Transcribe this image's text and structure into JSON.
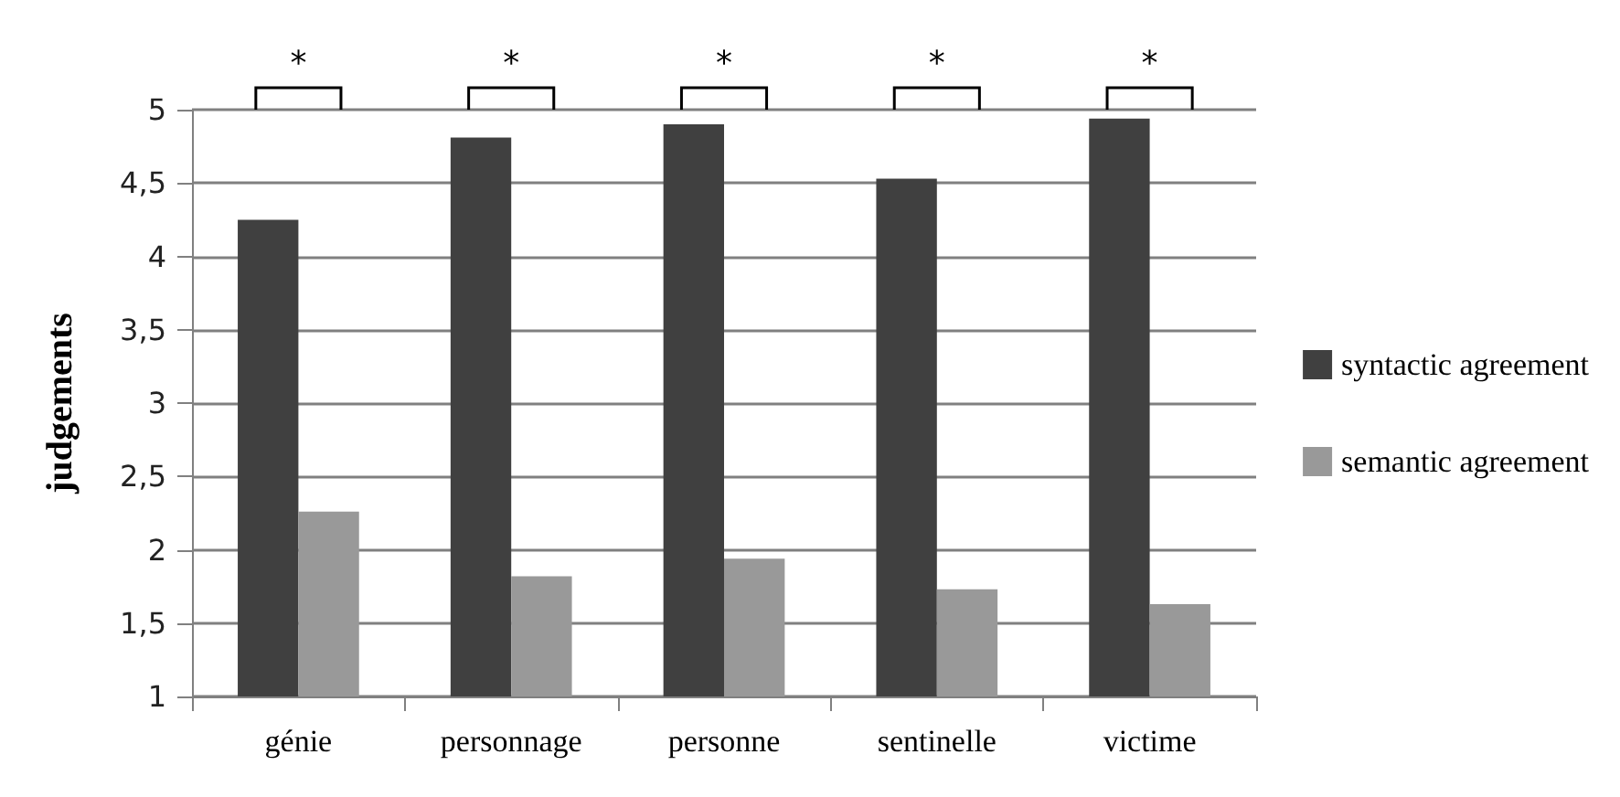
{
  "chart_data": {
    "type": "bar",
    "ylabel": "judgements",
    "categories": [
      "génie",
      "personnage",
      "personne",
      "sentinelle",
      "victime"
    ],
    "series": [
      {
        "name": "syntactic agreement",
        "color": "#404040",
        "values": [
          4.25,
          4.81,
          4.9,
          4.53,
          4.94
        ]
      },
      {
        "name": "semantic agreement",
        "color": "#999999",
        "values": [
          2.26,
          1.82,
          1.94,
          1.73,
          1.63
        ]
      }
    ],
    "ylim": [
      1,
      5
    ],
    "yticks": [
      {
        "value": 1,
        "label": "1"
      },
      {
        "value": 1.5,
        "label": "1,5"
      },
      {
        "value": 2,
        "label": "2"
      },
      {
        "value": 2.5,
        "label": "2,5"
      },
      {
        "value": 3,
        "label": "3"
      },
      {
        "value": 3.5,
        "label": "3,5"
      },
      {
        "value": 4,
        "label": "4"
      },
      {
        "value": 4.5,
        "label": "4,5"
      },
      {
        "value": 5,
        "label": "5"
      }
    ],
    "grid": "y",
    "legend": "right",
    "annotations": [
      "*",
      "*",
      "*",
      "*",
      "*"
    ]
  }
}
